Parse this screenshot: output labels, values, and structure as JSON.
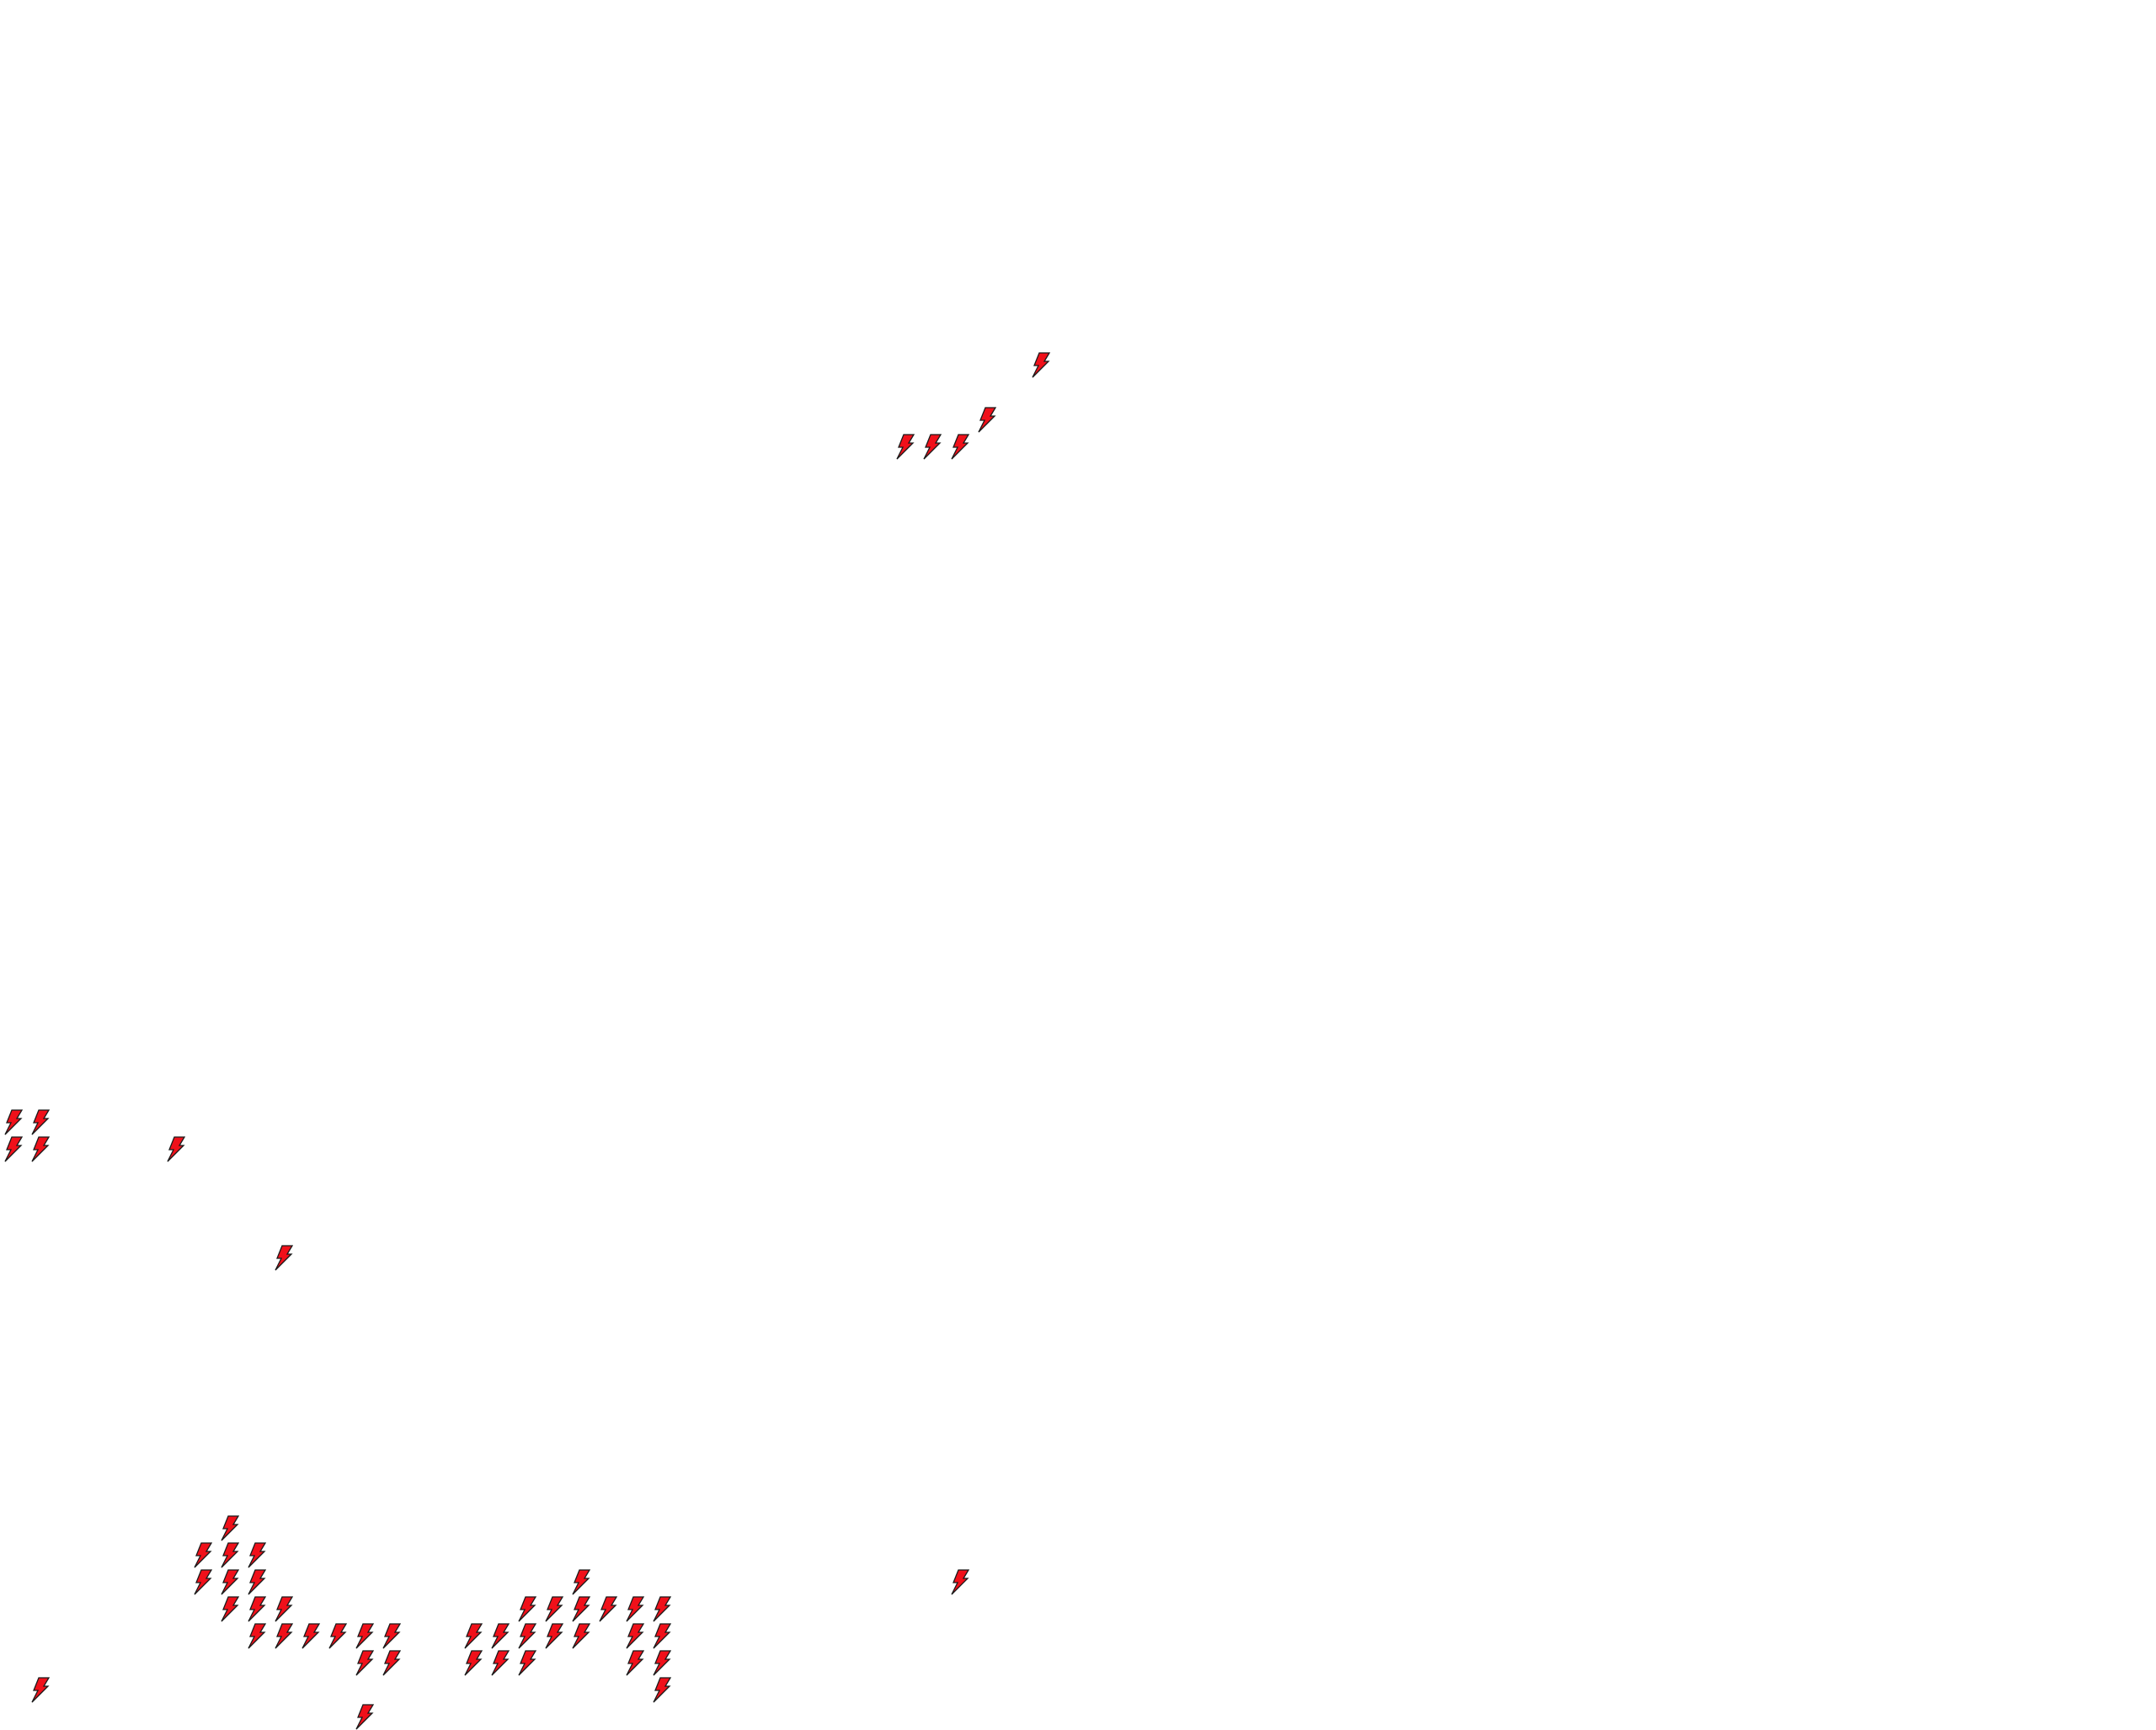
{
  "canvas": {
    "background": "#ffffff"
  },
  "icon": {
    "name": "lightning-bolt-icon",
    "fill": "#f0101a",
    "stroke": "#1a1a1a"
  }
}
